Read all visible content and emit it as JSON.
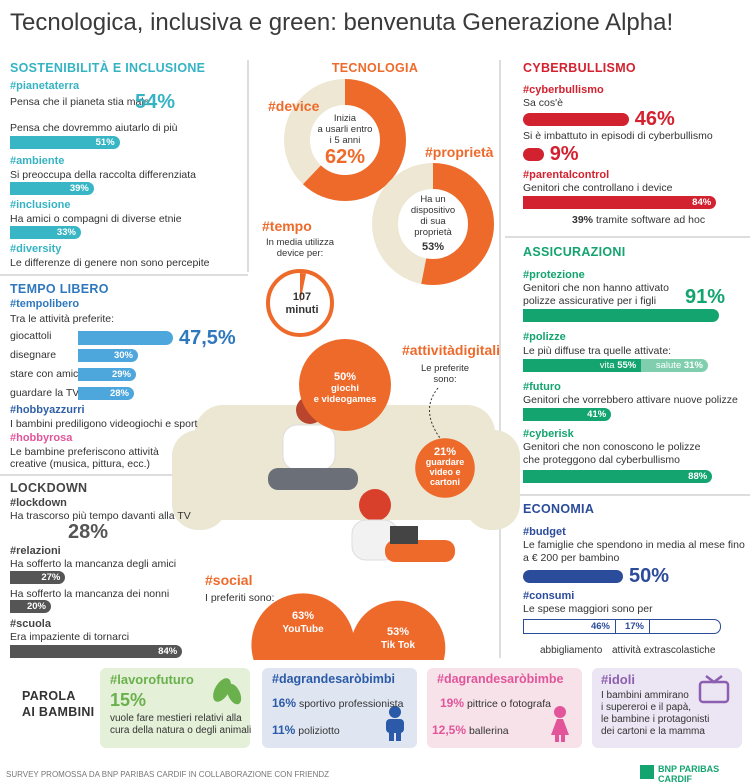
{
  "title": "Tecnologica, inclusiva e green: benvenuta Generazione Alpha!",
  "sostenibilita": {
    "heading": "SOSTENIBILITÀ E INCLUSIONE",
    "items": [
      {
        "tag": "#pianetaterra",
        "text": "Pensa che il pianeta stia male",
        "label": "54%"
      },
      {
        "text": "Pensa che dovremmo aiutarlo di più",
        "value": 51,
        "label": "51%"
      },
      {
        "tag": "#ambiente",
        "text": "Si preoccupa della raccolta differenziata",
        "value": 39,
        "label": "39%"
      },
      {
        "tag": "#inclusione",
        "text": "Ha amici o compagni di diverse etnie",
        "value": 33,
        "label": "33%"
      },
      {
        "tag": "#diversity",
        "text": "Le differenze di genere non sono percepite"
      }
    ]
  },
  "tempo_libero": {
    "heading": "TEMPO LIBERO",
    "tag": "#tempolibero",
    "intro": "Tra le attività preferite:",
    "activities": [
      {
        "name": "giocattoli",
        "value": 47.5,
        "label": "47,5%"
      },
      {
        "name": "disegnare",
        "value": 30,
        "label": "30%"
      },
      {
        "name": "stare con amici",
        "value": 29,
        "label": "29%"
      },
      {
        "name": "guardare la TV",
        "value": 28,
        "label": "28%"
      }
    ],
    "hobbies": [
      {
        "tag": "#hobbyazzurri",
        "text": [
          "I bambini prediligono videogiochi e sport"
        ]
      },
      {
        "tag": "#hobbyrosa",
        "text": [
          "Le bambine preferiscono attività",
          "creative (musica, pittura, ecc.)"
        ]
      }
    ]
  },
  "lockdown": {
    "heading": "LOCKDOWN",
    "items": [
      {
        "tag": "#lockdown",
        "text": "Ha trascorso più tempo davanti alla TV",
        "label": "28%"
      },
      {
        "tag": "#relazioni",
        "text": "Ha sofferto la mancanza degli amici",
        "value": 27,
        "label": "27%"
      },
      {
        "text": "Ha sofferto la mancanza dei nonni",
        "value": 20,
        "label": "20%"
      },
      {
        "tag": "#scuola",
        "text": "Era impaziente di tornarci",
        "value": 84,
        "label": "84%"
      }
    ]
  },
  "tecnologia": {
    "heading": "TECNOLOGIA",
    "device": {
      "tag": "#device",
      "text": [
        "Inizia",
        "a usarli entro",
        "i 5 anni"
      ],
      "value": 62,
      "label": "62%"
    },
    "proprieta": {
      "tag": "#proprietà",
      "text": [
        "Ha un",
        "dispositivo",
        "di sua",
        "proprietà"
      ],
      "value": 53,
      "label": "53%"
    },
    "tempo": {
      "tag": "#tempo",
      "text": [
        "In media utilizza",
        "device per:"
      ],
      "value": 107,
      "unit": "minuti"
    },
    "attivita": {
      "tag": "#attivitàdigitali",
      "text": [
        "Le preferite",
        "sono:"
      ],
      "items": [
        {
          "value": 50,
          "label": "50%",
          "text": [
            "giochi",
            "e videogames"
          ]
        },
        {
          "value": 21,
          "label": "21%",
          "text": [
            "guardare",
            "video e",
            "cartoni"
          ]
        }
      ]
    },
    "social": {
      "tag": "#social",
      "text": "I preferiti sono:",
      "items": [
        {
          "value": 63,
          "label": "63%",
          "name": "YouTube"
        },
        {
          "value": 53,
          "label": "53%",
          "name": "Tik Tok"
        }
      ]
    }
  },
  "cyberbullismo": {
    "heading": "CYBERBULLISMO",
    "items": [
      {
        "tag": "#cyberbullismo",
        "text": "Sa cos'è",
        "value": 46,
        "label": "46%"
      },
      {
        "text": "Si è imbattuto in episodi di cyberbullismo",
        "value": 9,
        "label": "9%"
      },
      {
        "tag": "#parentalcontrol",
        "text": "Genitori che controllano i device",
        "value": 84,
        "label": "84%",
        "sub_label": "39%",
        "sub_text": "tramite software ad hoc"
      }
    ]
  },
  "assicurazioni": {
    "heading": "ASSICURAZIONI",
    "protezione": {
      "tag": "#protezione",
      "text": [
        "Genitori che non hanno attivato",
        "polizze assicurative per i figli"
      ],
      "value": 91,
      "label": "91%"
    },
    "polizze": {
      "tag": "#polizze",
      "text": "Le più diffuse tra quelle attivate:",
      "items": [
        {
          "name": "vita",
          "value": 55,
          "label": "55%"
        },
        {
          "name": "salute",
          "value": 31,
          "label": "31%"
        }
      ]
    },
    "futuro": {
      "tag": "#futuro",
      "text": "Genitori che vorrebbero attivare nuove polizze",
      "value": 41,
      "label": "41%"
    },
    "cyberisk": {
      "tag": "#cyberisk",
      "text": [
        "Genitori che non conoscono le polizze",
        "che proteggono dal cyberbullismo"
      ],
      "value": 88,
      "label": "88%"
    }
  },
  "economia": {
    "heading": "ECONOMIA",
    "budget": {
      "tag": "#budget",
      "text": [
        "Le famiglie che spendono in media al mese fino",
        "a € 200 per bambino"
      ],
      "value": 50,
      "label": "50%"
    },
    "consumi": {
      "tag": "#consumi",
      "text": "Le spese maggiori sono per",
      "items": [
        {
          "name": "abbigliamento",
          "value": 46,
          "label": "46%"
        },
        {
          "name": "attività extrascolastiche",
          "value": 17,
          "label": "17%"
        }
      ]
    }
  },
  "parola": {
    "heading": [
      "PAROLA",
      "AI BAMBINI"
    ],
    "cards": [
      {
        "tag": "#lavorofuturo",
        "label": "15%",
        "text": [
          "vuole fare mestieri relativi alla",
          "cura della natura o degli animali"
        ]
      },
      {
        "tag": "#dagrandesaròbimbi",
        "items": [
          {
            "label": "16%",
            "text": "sportivo professionista"
          },
          {
            "label": "11%",
            "text": "poliziotto"
          }
        ]
      },
      {
        "tag": "#dagrandesaròbimbe",
        "items": [
          {
            "label": "19%",
            "text": "pittrice o fotografa"
          },
          {
            "label": "12,5%",
            "text": "ballerina"
          }
        ]
      },
      {
        "tag": "#idoli",
        "text": [
          "I bambini ammirano",
          "i supereroi e il papà,",
          "le bambine i protagonisti",
          "dei cartoni e la mamma"
        ]
      }
    ]
  },
  "footer": {
    "survey": "SURVEY PROMOSSA DA BNP PARIBAS CARDIF IN COLLABORAZIONE CON FRIENDZ",
    "logo": [
      "BNP PARIBAS",
      "CARDIF"
    ]
  }
}
